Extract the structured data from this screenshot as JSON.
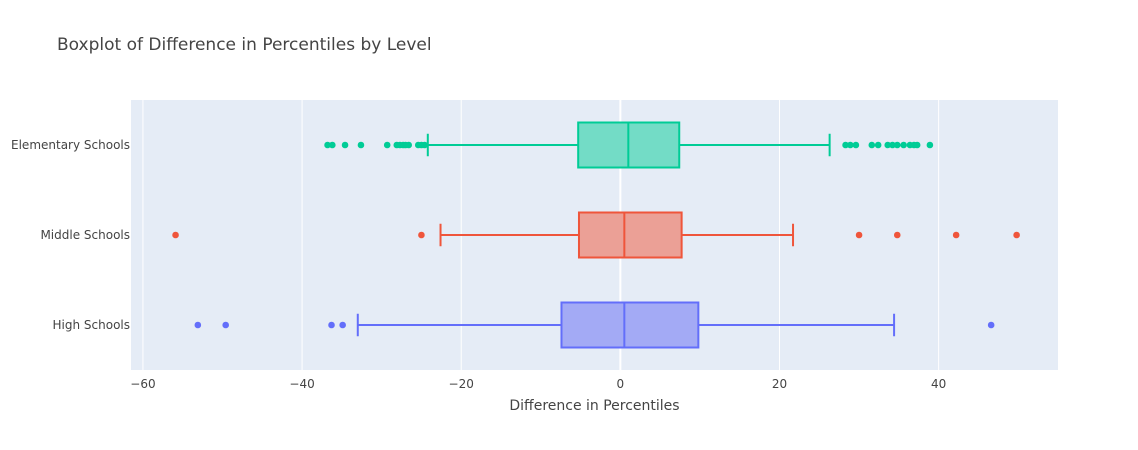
{
  "chart_data": {
    "type": "box",
    "orientation": "horizontal",
    "title": "Boxplot of Difference in Percentiles by Level",
    "xlabel": "Difference in Percentiles",
    "ylabel": "",
    "xlim": [
      -61.5,
      55
    ],
    "xticks": [
      -60,
      -40,
      -20,
      0,
      20,
      40
    ],
    "xtick_labels": [
      "−60",
      "−40",
      "−20",
      "0",
      "20",
      "40"
    ],
    "grid": true,
    "legend": "none",
    "categories": [
      "Elementary Schools",
      "Middle Schools",
      "High Schools"
    ],
    "series": [
      {
        "category": "Elementary Schools",
        "color": "#00cc96",
        "fill": "#73dcc6",
        "min": -24.2,
        "q1": -5.3,
        "median": 1.0,
        "q3": 7.4,
        "max": 26.3,
        "outliers": [
          -36.8,
          -36.2,
          -34.6,
          -32.6,
          -29.3,
          -28.1,
          -27.7,
          -27.3,
          -27.0,
          -26.6,
          -25.4,
          -25.0,
          -24.6,
          28.3,
          28.9,
          29.6,
          31.6,
          32.4,
          33.6,
          34.2,
          34.8,
          35.6,
          36.4,
          36.9,
          37.3,
          38.9
        ]
      },
      {
        "category": "Middle Schools",
        "color": "#ef553b",
        "fill": "#eba096",
        "min": -22.6,
        "q1": -5.2,
        "median": 0.5,
        "q3": 7.7,
        "max": 21.7,
        "outliers": [
          -55.9,
          -25.0,
          30.0,
          34.8,
          42.2,
          49.8
        ]
      },
      {
        "category": "High Schools",
        "color": "#636efa",
        "fill": "#a3aaf5",
        "min": -33.0,
        "q1": -7.4,
        "median": 0.5,
        "q3": 9.8,
        "max": 34.4,
        "outliers": [
          -53.1,
          -49.6,
          -36.3,
          -34.9,
          46.6
        ]
      }
    ]
  }
}
